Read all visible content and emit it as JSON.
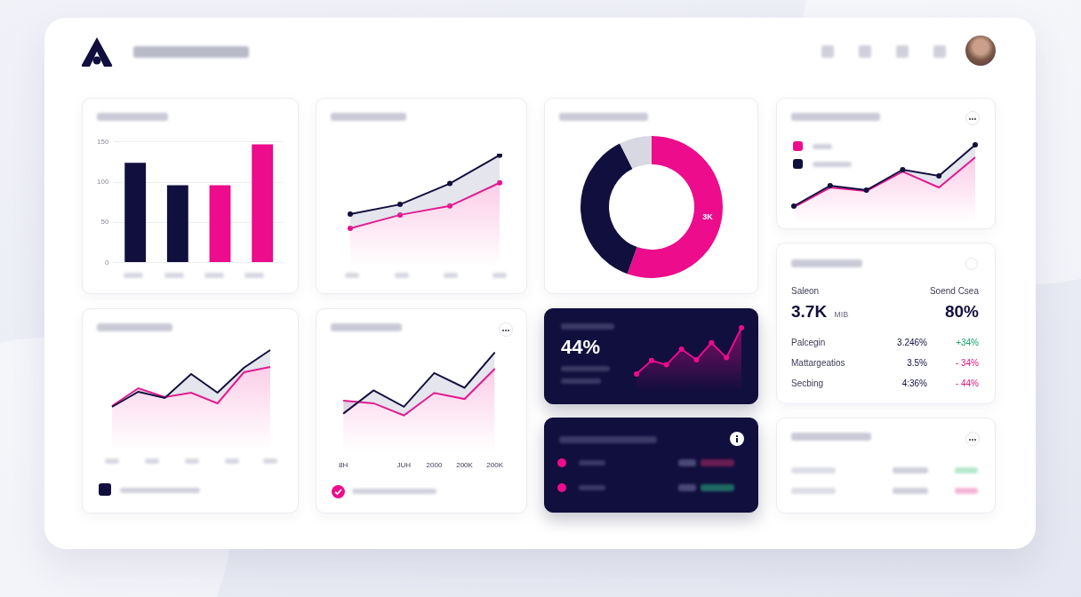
{
  "chart_data": [
    {
      "type": "bar",
      "categories": [
        null,
        null,
        null,
        null
      ],
      "values": [
        124,
        96,
        96,
        147
      ],
      "colors": [
        "#110f3d",
        "#110f3d",
        "#ec0c8c",
        "#ec0c8c"
      ],
      "ylim": [
        0,
        150
      ],
      "yticks": [
        0,
        50,
        100,
        150
      ],
      "grid": true
    },
    {
      "type": "line",
      "categories": [
        null,
        null,
        null,
        null
      ],
      "series": [
        {
          "color": "#110f3d",
          "marker": "circle",
          "values": [
            69,
            82,
            110,
            148
          ]
        },
        {
          "color": "#ec0c8c",
          "marker": "circle",
          "values": [
            50,
            68,
            80,
            111
          ]
        }
      ],
      "ylim": [
        0,
        150
      ],
      "tick_labels": false,
      "grid": false
    },
    {
      "type": "doughnut",
      "categories": [
        null,
        null,
        null
      ],
      "values": [
        3000,
        2000,
        400
      ],
      "value_labels": [
        "3K",
        null,
        null
      ],
      "colors": [
        "#ec0c8c",
        "#110f3d",
        "#d8d8e2"
      ],
      "data_labels": true
    },
    {
      "type": "line",
      "categories": [
        null,
        null,
        null,
        null,
        null,
        null
      ],
      "series": [
        {
          "color": "#110f3d",
          "marker": "circle",
          "values": [
            19,
            42,
            37,
            60,
            53,
            88
          ]
        },
        {
          "color": "#ec0c8c",
          "values": [
            18,
            40,
            36,
            58,
            40,
            74
          ]
        }
      ],
      "ylim": [
        0,
        100
      ],
      "tick_labels": false,
      "grid": false,
      "legend": "top left"
    },
    {
      "type": "line",
      "categories": [
        null,
        null,
        null,
        null,
        null,
        null,
        null
      ],
      "series": [
        {
          "color": "#110f3d",
          "values": [
            48,
            65,
            58,
            85,
            64,
            92,
            112
          ]
        },
        {
          "color": "#ec0c8c",
          "values": [
            49,
            69,
            59,
            64,
            52,
            87,
            93
          ]
        }
      ],
      "ylim": [
        0,
        130
      ],
      "tick_labels": false,
      "grid": false
    },
    {
      "type": "line",
      "categories": [
        "8H",
        null,
        "JUH",
        "2000",
        "200K",
        "200K"
      ],
      "series": [
        {
          "color": "#110f3d",
          "values": [
            43,
            70,
            51,
            90,
            73,
            114
          ]
        },
        {
          "color": "#ec0c8c",
          "values": [
            58,
            55,
            41,
            67,
            60,
            95
          ]
        }
      ],
      "ylim": [
        0,
        130
      ],
      "tick_labels": "x",
      "grid": false
    },
    {
      "type": "line",
      "categories": [
        null,
        null,
        null,
        null,
        null,
        null,
        null,
        null
      ],
      "series": [
        {
          "color": "#ec0c8c",
          "marker": "circle",
          "values": [
            25,
            44,
            38,
            60,
            45,
            69,
            48,
            90
          ]
        }
      ],
      "ylim": [
        0,
        100
      ],
      "tick_labels": false,
      "grid": false
    }
  ],
  "stat_card": {
    "value": "44%"
  },
  "table_card": {
    "header": [
      {
        "label": "Saleon",
        "value": "3.7K",
        "unit": "MIB"
      },
      {
        "label": "Soend Csea",
        "value": "80%"
      }
    ],
    "rows": [
      [
        "Palcegin",
        "3.246%",
        "+34%"
      ],
      [
        "Mattargeatios",
        "3.5%",
        "- 34%"
      ],
      [
        "Secbing",
        "4:36%",
        "- 44%"
      ]
    ]
  }
}
